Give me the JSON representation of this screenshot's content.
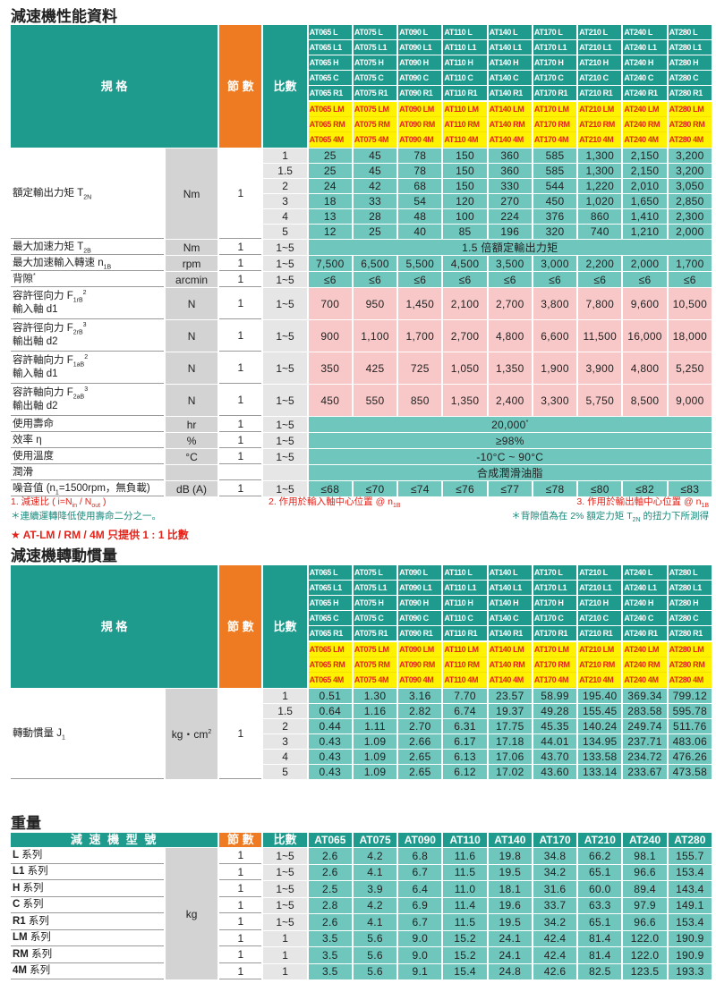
{
  "section1": {
    "title": "減速機性能資料",
    "table": {
      "header": {
        "spec": "規 格",
        "stage": "節 數",
        "ratio": "比數",
        "models": [
          [
            "AT065 L",
            "AT065 L1",
            "AT065 H",
            "AT065 C",
            "AT065 R1",
            "AT065 LM",
            "AT065 RM",
            "AT065 4M"
          ],
          [
            "AT075 L",
            "AT075 L1",
            "AT075 H",
            "AT075 C",
            "AT075 R1",
            "AT075 LM",
            "AT075 RM",
            "AT075 4M"
          ],
          [
            "AT090 L",
            "AT090 L1",
            "AT090 H",
            "AT090 C",
            "AT090 R1",
            "AT090 LM",
            "AT090 RM",
            "AT090 4M"
          ],
          [
            "AT110 L",
            "AT110 L1",
            "AT110 H",
            "AT110 C",
            "AT110 R1",
            "AT110 LM",
            "AT110 RM",
            "AT110 4M"
          ],
          [
            "AT140 L",
            "AT140 L1",
            "AT140 H",
            "AT140 C",
            "AT140 R1",
            "AT140 LM",
            "AT140 RM",
            "AT140 4M"
          ],
          [
            "AT170 L",
            "AT170 L1",
            "AT170 H",
            "AT170 C",
            "AT170 R1",
            "AT170 LM",
            "AT170 RM",
            "AT170 4M"
          ],
          [
            "AT210 L",
            "AT210 L1",
            "AT210 H",
            "AT210 C",
            "AT210 R1",
            "AT210 LM",
            "AT210 RM",
            "AT210 4M"
          ],
          [
            "AT240 L",
            "AT240 L1",
            "AT240 H",
            "AT240 C",
            "AT240 R1",
            "AT240 LM",
            "AT240 RM",
            "AT240 4M"
          ],
          [
            "AT280 L",
            "AT280 L1",
            "AT280 H",
            "AT280 C",
            "AT280 R1",
            "AT280 LM",
            "AT280 RM",
            "AT280 4M"
          ]
        ]
      },
      "rows": [
        {
          "label": [
            {
              "text": "額定輸出力矩 T"
            },
            {
              "sub": "2N"
            }
          ],
          "unit": "Nm",
          "stage": "1",
          "ratios": [
            "1",
            "1.5",
            "2",
            "3",
            "4",
            "5"
          ],
          "values": [
            [
              "25",
              "45",
              "78",
              "150",
              "360",
              "585",
              "1,300",
              "2,150",
              "3,200"
            ],
            [
              "25",
              "45",
              "78",
              "150",
              "360",
              "585",
              "1,300",
              "2,150",
              "3,200"
            ],
            [
              "24",
              "42",
              "68",
              "150",
              "330",
              "544",
              "1,220",
              "2,010",
              "3,050"
            ],
            [
              "18",
              "33",
              "54",
              "120",
              "270",
              "450",
              "1,020",
              "1,650",
              "2,850"
            ],
            [
              "13",
              "28",
              "48",
              "100",
              "224",
              "376",
              "860",
              "1,410",
              "2,300"
            ],
            [
              "12",
              "25",
              "40",
              "85",
              "196",
              "320",
              "740",
              "1,210",
              "2,000"
            ]
          ]
        },
        {
          "label": [
            {
              "text": "最大加速力矩 T"
            },
            {
              "sub": "2B"
            }
          ],
          "unit": "Nm",
          "stage": "1",
          "ratio": "1~5",
          "merged": "1.5 倍額定輸出力矩"
        },
        {
          "label": [
            {
              "text": "最大加速輸入轉速 n"
            },
            {
              "sub": "1B"
            }
          ],
          "unit": "rpm",
          "stage": "1",
          "ratio": "1~5",
          "values": [
            "7,500",
            "6,500",
            "5,500",
            "4,500",
            "3,500",
            "3,000",
            "2,200",
            "2,000",
            "1,700"
          ]
        },
        {
          "label": [
            {
              "text": "背隙"
            },
            {
              "sup": "*"
            }
          ],
          "unit": "arcmin",
          "stage": "1",
          "ratio": "1~5",
          "values": [
            "≤6",
            "≤6",
            "≤6",
            "≤6",
            "≤6",
            "≤6",
            "≤6",
            "≤6",
            "≤6"
          ]
        },
        {
          "label": [
            {
              "text": "容許徑向力 F"
            },
            {
              "sub": "1rB"
            },
            {
              "sup": "2"
            }
          ],
          "label2": [
            {
              "text": "輸入軸 d1"
            }
          ],
          "unit": "N",
          "stage": "1",
          "ratio": "1~5",
          "color": "#f8c8c8",
          "values": [
            "700",
            "950",
            "1,450",
            "2,100",
            "2,700",
            "3,800",
            "7,800",
            "9,600",
            "10,500"
          ]
        },
        {
          "label": [
            {
              "text": "容許徑向力 F"
            },
            {
              "sub": "2rB"
            },
            {
              "sup": "3"
            }
          ],
          "label2": [
            {
              "text": "輸出軸 d2"
            }
          ],
          "unit": "N",
          "stage": "1",
          "ratio": "1~5",
          "color": "#f8c8c8",
          "values": [
            "900",
            "1,100",
            "1,700",
            "2,700",
            "4,800",
            "6,600",
            "11,500",
            "16,000",
            "18,000"
          ]
        },
        {
          "label": [
            {
              "text": "容許軸向力 F"
            },
            {
              "sub": "1aB"
            },
            {
              "sup": "2"
            }
          ],
          "label2": [
            {
              "text": "輸入軸 d1"
            }
          ],
          "unit": "N",
          "stage": "1",
          "ratio": "1~5",
          "color": "#f8c8c8",
          "values": [
            "350",
            "425",
            "725",
            "1,050",
            "1,350",
            "1,900",
            "3,900",
            "4,800",
            "5,250"
          ]
        },
        {
          "label": [
            {
              "text": "容許軸向力 F"
            },
            {
              "sub": "2aB"
            },
            {
              "sup": "3"
            }
          ],
          "label2": [
            {
              "text": "輸出軸 d2"
            }
          ],
          "unit": "N",
          "stage": "1",
          "ratio": "1~5",
          "color": "#f8c8c8",
          "values": [
            "450",
            "550",
            "850",
            "1,350",
            "2,400",
            "3,300",
            "5,750",
            "8,500",
            "9,000"
          ]
        },
        {
          "label": [
            {
              "text": "使用壽命"
            }
          ],
          "unit": "hr",
          "stage": "1",
          "ratio": "1~5",
          "merged": [
            {
              "text": "20,000"
            },
            {
              "sup": "*"
            }
          ]
        },
        {
          "label": [
            {
              "text": "效率 η"
            }
          ],
          "unit": "%",
          "stage": "1",
          "ratio": "1~5",
          "merged": "≥98%"
        },
        {
          "label": [
            {
              "text": "使用溫度"
            }
          ],
          "unit": "°C",
          "stage": "1",
          "ratio": "1~5",
          "merged": "-10°C ~ 90°C"
        },
        {
          "label": [
            {
              "text": "潤滑"
            }
          ],
          "merged": "合成潤滑油脂"
        },
        {
          "label": [
            {
              "text": "噪音值 (n"
            },
            {
              "sub": "1"
            },
            {
              "text": "=1500rpm，無負載)"
            }
          ],
          "unit": "dB (A)",
          "stage": "1",
          "ratio": "1~5",
          "values": [
            "≤68",
            "≤70",
            "≤74",
            "≤76",
            "≤77",
            "≤78",
            "≤80",
            "≤82",
            "≤83"
          ]
        }
      ]
    },
    "notes": {
      "note1": [
        {
          "text": "1. 減速比 ( i=N"
        },
        {
          "sub": "in"
        },
        {
          "text": " / N"
        },
        {
          "sub": "out"
        },
        {
          "text": " )"
        }
      ],
      "note2": [
        {
          "text": "2. 作用於輸入軸中心位置 @ n"
        },
        {
          "sub": "1B"
        }
      ],
      "note3": [
        {
          "text": "3. 作用於輸出軸中心位置 @ n"
        },
        {
          "sub": "1B"
        }
      ],
      "note4": "＊連續運轉降低使用壽命二分之一。",
      "note5": [
        {
          "text": "＊背隙值為在 2% 額定力矩 T"
        },
        {
          "sub": "2N"
        },
        {
          "text": " 的扭力下所測得"
        }
      ],
      "note6": "★ AT-LM / RM / 4M 只提供 1 : 1 比數"
    }
  },
  "section2": {
    "title": "減速機轉動慣量",
    "table": {
      "header": {
        "spec": "規 格",
        "stage": "節 數",
        "ratio": "比數",
        "models": [
          [
            "AT065 L",
            "AT065 L1",
            "AT065 H",
            "AT065 C",
            "AT065 R1",
            "AT065 LM",
            "AT065 RM",
            "AT065 4M"
          ],
          [
            "AT075 L",
            "AT075 L1",
            "AT075 H",
            "AT075 C",
            "AT075 R1",
            "AT075 LM",
            "AT075 RM",
            "AT075 4M"
          ],
          [
            "AT090 L",
            "AT090 L1",
            "AT090 H",
            "AT090 C",
            "AT090 R1",
            "AT090 LM",
            "AT090 RM",
            "AT090 4M"
          ],
          [
            "AT110 L",
            "AT110 L1",
            "AT110 H",
            "AT110 C",
            "AT110 R1",
            "AT110 LM",
            "AT110 RM",
            "AT110 4M"
          ],
          [
            "AT140 L",
            "AT140 L1",
            "AT140 H",
            "AT140 C",
            "AT140 R1",
            "AT140 LM",
            "AT140 RM",
            "AT140 4M"
          ],
          [
            "AT170 L",
            "AT170 L1",
            "AT170 H",
            "AT170 C",
            "AT170 R1",
            "AT170 LM",
            "AT170 RM",
            "AT170 4M"
          ],
          [
            "AT210 L",
            "AT210 L1",
            "AT210 H",
            "AT210 C",
            "AT210 R1",
            "AT210 LM",
            "AT210 RM",
            "AT210 4M"
          ],
          [
            "AT240 L",
            "AT240 L1",
            "AT240 H",
            "AT240 C",
            "AT240 R1",
            "AT240 LM",
            "AT240 RM",
            "AT240 4M"
          ],
          [
            "AT280 L",
            "AT280 L1",
            "AT280 H",
            "AT280 C",
            "AT280 R1",
            "AT280 LM",
            "AT280 RM",
            "AT280 4M"
          ]
        ]
      },
      "rows": [
        {
          "label": [
            {
              "text": "轉動慣量 J"
            },
            {
              "sub": "1"
            }
          ],
          "unit": [
            {
              "text": "kg・cm"
            },
            {
              "sup": "2"
            }
          ],
          "stage": "1",
          "ratios": [
            "1",
            "1.5",
            "2",
            "3",
            "4",
            "5"
          ],
          "values": [
            [
              "0.51",
              "1.30",
              "3.16",
              "7.70",
              "23.57",
              "58.99",
              "195.40",
              "369.34",
              "799.12"
            ],
            [
              "0.64",
              "1.16",
              "2.82",
              "6.74",
              "19.37",
              "49.28",
              "155.45",
              "283.58",
              "595.78"
            ],
            [
              "0.44",
              "1.11",
              "2.70",
              "6.31",
              "17.75",
              "45.35",
              "140.24",
              "249.74",
              "511.76"
            ],
            [
              "0.43",
              "1.09",
              "2.66",
              "6.17",
              "17.18",
              "44.01",
              "134.95",
              "237.71",
              "483.06"
            ],
            [
              "0.43",
              "1.09",
              "2.65",
              "6.13",
              "17.06",
              "43.70",
              "133.58",
              "234.72",
              "476.26"
            ],
            [
              "0.43",
              "1.09",
              "2.65",
              "6.12",
              "17.02",
              "43.60",
              "133.14",
              "233.67",
              "473.58"
            ]
          ]
        }
      ]
    }
  },
  "section3": {
    "title": "重量",
    "table": {
      "header": {
        "spec": "減 速 機 型 號",
        "stage": "節 數",
        "ratio": "比數",
        "models": [
          "AT065",
          "AT075",
          "AT090",
          "AT110",
          "AT140",
          "AT170",
          "AT210",
          "AT240",
          "AT280"
        ]
      },
      "unit": "kg",
      "rows": [
        {
          "label": [
            {
              "bold": "L"
            },
            {
              "text": " 系列"
            }
          ],
          "stage": "1",
          "ratio": "1~5",
          "values": [
            "2.6",
            "4.2",
            "6.8",
            "11.6",
            "19.8",
            "34.8",
            "66.2",
            "98.1",
            "155.7"
          ]
        },
        {
          "label": [
            {
              "bold": "L1"
            },
            {
              "text": " 系列"
            }
          ],
          "stage": "1",
          "ratio": "1~5",
          "values": [
            "2.6",
            "4.1",
            "6.7",
            "11.5",
            "19.5",
            "34.2",
            "65.1",
            "96.6",
            "153.4"
          ]
        },
        {
          "label": [
            {
              "bold": "H"
            },
            {
              "text": " 系列"
            }
          ],
          "stage": "1",
          "ratio": "1~5",
          "values": [
            "2.5",
            "3.9",
            "6.4",
            "11.0",
            "18.1",
            "31.6",
            "60.0",
            "89.4",
            "143.4"
          ]
        },
        {
          "label": [
            {
              "bold": "C"
            },
            {
              "text": " 系列"
            }
          ],
          "stage": "1",
          "ratio": "1~5",
          "values": [
            "2.8",
            "4.2",
            "6.9",
            "11.4",
            "19.6",
            "33.7",
            "63.3",
            "97.9",
            "149.1"
          ]
        },
        {
          "label": [
            {
              "bold": "R1"
            },
            {
              "text": " 系列"
            }
          ],
          "stage": "1",
          "ratio": "1~5",
          "values": [
            "2.6",
            "4.1",
            "6.7",
            "11.5",
            "19.5",
            "34.2",
            "65.1",
            "96.6",
            "153.4"
          ]
        },
        {
          "label": [
            {
              "bold": "LM"
            },
            {
              "text": " 系列"
            }
          ],
          "stage": "1",
          "ratio": "1",
          "values": [
            "3.5",
            "5.6",
            "9.0",
            "15.2",
            "24.1",
            "42.4",
            "81.4",
            "122.0",
            "190.9"
          ]
        },
        {
          "label": [
            {
              "bold": "RM"
            },
            {
              "text": " 系列"
            }
          ],
          "stage": "1",
          "ratio": "1",
          "values": [
            "3.5",
            "5.6",
            "9.0",
            "15.2",
            "24.1",
            "42.4",
            "81.4",
            "122.0",
            "190.9"
          ]
        },
        {
          "label": [
            {
              "bold": "4M"
            },
            {
              "text": " 系列"
            }
          ],
          "stage": "1",
          "ratio": "1",
          "values": [
            "3.5",
            "5.6",
            "9.1",
            "15.4",
            "24.8",
            "42.6",
            "82.5",
            "123.5",
            "193.3"
          ]
        }
      ]
    }
  }
}
